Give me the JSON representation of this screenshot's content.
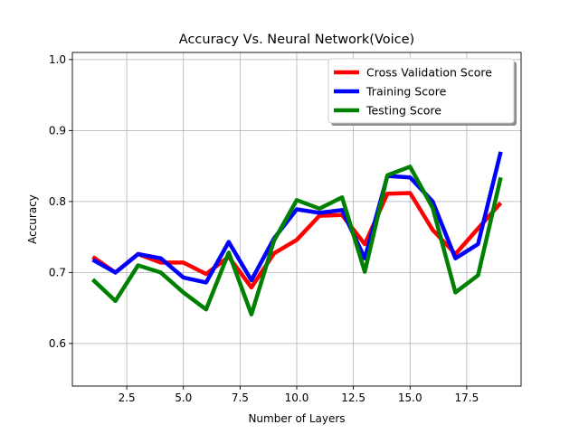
{
  "chart_data": {
    "type": "line",
    "title": "Accuracy Vs. Neural Network(Voice)",
    "xlabel": "Number of Layers",
    "ylabel": "Accuracy",
    "xlim": [
      0.1,
      19.9
    ],
    "ylim": [
      0.54,
      1.01
    ],
    "xticks": [
      2.5,
      5.0,
      7.5,
      10.0,
      12.5,
      15.0,
      17.5
    ],
    "xtick_labels": [
      "2.5",
      "5.0",
      "7.5",
      "10.0",
      "12.5",
      "15.0",
      "17.5"
    ],
    "yticks": [
      0.6,
      0.7,
      0.8,
      0.9,
      1.0
    ],
    "ytick_labels": [
      "0.6",
      "0.7",
      "0.8",
      "0.9",
      "1.0"
    ],
    "grid": true,
    "legend_position": "top-right",
    "x": [
      1,
      2,
      3,
      4,
      5,
      6,
      7,
      8,
      9,
      10,
      11,
      12,
      13,
      14,
      15,
      16,
      17,
      18,
      19
    ],
    "series": [
      {
        "name": "Cross Validation Score",
        "color": "#ff0000",
        "values": [
          0.722,
          0.7,
          0.726,
          0.714,
          0.714,
          0.698,
          0.722,
          0.679,
          0.727,
          0.746,
          0.78,
          0.781,
          0.74,
          0.811,
          0.812,
          0.76,
          0.726,
          0.762,
          0.798
        ]
      },
      {
        "name": "Training Score",
        "color": "#0000ff",
        "values": [
          0.718,
          0.7,
          0.726,
          0.72,
          0.693,
          0.686,
          0.743,
          0.689,
          0.748,
          0.789,
          0.784,
          0.788,
          0.72,
          0.836,
          0.834,
          0.8,
          0.72,
          0.74,
          0.87
        ]
      },
      {
        "name": "Testing Score",
        "color": "#008000",
        "values": [
          0.69,
          0.66,
          0.71,
          0.7,
          0.672,
          0.648,
          0.728,
          0.641,
          0.745,
          0.802,
          0.79,
          0.806,
          0.701,
          0.837,
          0.849,
          0.791,
          0.672,
          0.696,
          0.834
        ]
      }
    ]
  }
}
